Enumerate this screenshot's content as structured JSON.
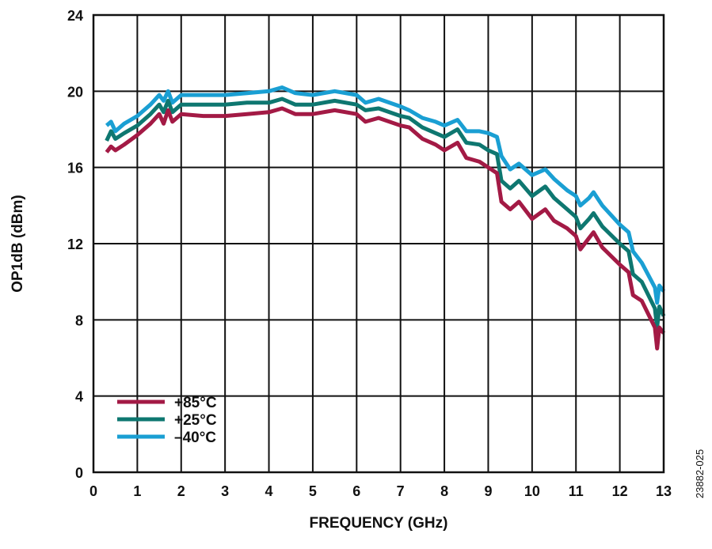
{
  "chart_data": {
    "type": "line",
    "title": "",
    "xlabel": "FREQUENCY (GHz)",
    "ylabel": "OP1dB (dBm)",
    "xlim": [
      0,
      13
    ],
    "ylim": [
      0,
      24
    ],
    "xticks": [
      "0",
      "1",
      "2",
      "3",
      "4",
      "5",
      "6",
      "7",
      "8",
      "9",
      "10",
      "11",
      "12",
      "13"
    ],
    "yticks": [
      "0",
      "4",
      "8",
      "12",
      "16",
      "20",
      "24"
    ],
    "grid": true,
    "legend_position": "bottom-left",
    "figure_id": "23882-025",
    "series": [
      {
        "name": "+85°C",
        "color": "#a31a45",
        "x": [
          0.3,
          0.4,
          0.5,
          0.7,
          1.0,
          1.3,
          1.5,
          1.6,
          1.7,
          1.8,
          2.0,
          2.5,
          3.0,
          3.5,
          4.0,
          4.3,
          4.6,
          5.0,
          5.5,
          6.0,
          6.2,
          6.5,
          7.0,
          7.2,
          7.5,
          7.8,
          8.0,
          8.3,
          8.5,
          8.8,
          9.0,
          9.2,
          9.3,
          9.5,
          9.7,
          10.0,
          10.3,
          10.5,
          10.8,
          11.0,
          11.1,
          11.3,
          11.4,
          11.6,
          12.0,
          12.2,
          12.3,
          12.5,
          12.8,
          12.85,
          12.9,
          13.0
        ],
        "y": [
          16.8,
          17.1,
          16.9,
          17.2,
          17.7,
          18.3,
          18.8,
          18.3,
          19.0,
          18.4,
          18.8,
          18.7,
          18.7,
          18.8,
          18.9,
          19.1,
          18.8,
          18.8,
          19.0,
          18.8,
          18.4,
          18.6,
          18.2,
          18.1,
          17.5,
          17.2,
          16.9,
          17.3,
          16.5,
          16.3,
          16.0,
          15.7,
          14.2,
          13.8,
          14.2,
          13.3,
          13.8,
          13.2,
          12.8,
          12.4,
          11.7,
          12.3,
          12.6,
          11.8,
          10.9,
          10.5,
          9.3,
          9.0,
          7.6,
          6.5,
          7.6,
          7.3
        ]
      },
      {
        "name": "+25°C",
        "color": "#0e7770",
        "x": [
          0.3,
          0.4,
          0.5,
          0.7,
          1.0,
          1.3,
          1.5,
          1.6,
          1.7,
          1.8,
          2.0,
          2.5,
          3.0,
          3.5,
          4.0,
          4.3,
          4.6,
          5.0,
          5.5,
          6.0,
          6.2,
          6.5,
          7.0,
          7.2,
          7.5,
          7.8,
          8.0,
          8.3,
          8.5,
          8.8,
          9.0,
          9.2,
          9.3,
          9.5,
          9.7,
          10.0,
          10.3,
          10.5,
          10.8,
          11.0,
          11.1,
          11.3,
          11.4,
          11.6,
          12.0,
          12.2,
          12.3,
          12.5,
          12.8,
          12.85,
          12.9,
          13.0
        ],
        "y": [
          17.4,
          17.9,
          17.5,
          17.8,
          18.2,
          18.8,
          19.3,
          18.9,
          19.5,
          18.9,
          19.3,
          19.3,
          19.3,
          19.4,
          19.4,
          19.6,
          19.3,
          19.3,
          19.5,
          19.3,
          19.0,
          19.1,
          18.7,
          18.6,
          18.1,
          17.8,
          17.6,
          18.0,
          17.3,
          17.2,
          16.9,
          16.7,
          15.3,
          14.9,
          15.3,
          14.5,
          15.0,
          14.4,
          13.8,
          13.4,
          12.8,
          13.3,
          13.6,
          12.9,
          12.0,
          11.6,
          10.4,
          10.0,
          8.6,
          7.6,
          8.7,
          8.2
        ]
      },
      {
        "name": "–40°C",
        "color": "#1a9fd3",
        "x": [
          0.3,
          0.4,
          0.5,
          0.7,
          1.0,
          1.3,
          1.5,
          1.6,
          1.7,
          1.8,
          2.0,
          2.5,
          3.0,
          3.5,
          4.0,
          4.3,
          4.6,
          5.0,
          5.5,
          6.0,
          6.2,
          6.5,
          7.0,
          7.2,
          7.5,
          7.8,
          8.0,
          8.3,
          8.5,
          8.8,
          9.0,
          9.2,
          9.3,
          9.5,
          9.7,
          10.0,
          10.3,
          10.5,
          10.8,
          11.0,
          11.1,
          11.3,
          11.4,
          11.6,
          12.0,
          12.2,
          12.3,
          12.5,
          12.8,
          12.85,
          12.9,
          13.0
        ],
        "y": [
          18.2,
          18.4,
          17.9,
          18.3,
          18.7,
          19.3,
          19.8,
          19.5,
          20.0,
          19.4,
          19.8,
          19.8,
          19.8,
          19.9,
          20.0,
          20.2,
          19.9,
          19.8,
          20.0,
          19.8,
          19.4,
          19.6,
          19.2,
          19.0,
          18.6,
          18.4,
          18.2,
          18.5,
          17.9,
          17.9,
          17.8,
          17.6,
          16.6,
          15.9,
          16.2,
          15.6,
          15.9,
          15.4,
          14.8,
          14.5,
          14.0,
          14.4,
          14.7,
          14.0,
          13.0,
          12.6,
          11.6,
          11.0,
          9.7,
          8.9,
          9.8,
          9.5
        ]
      }
    ]
  }
}
